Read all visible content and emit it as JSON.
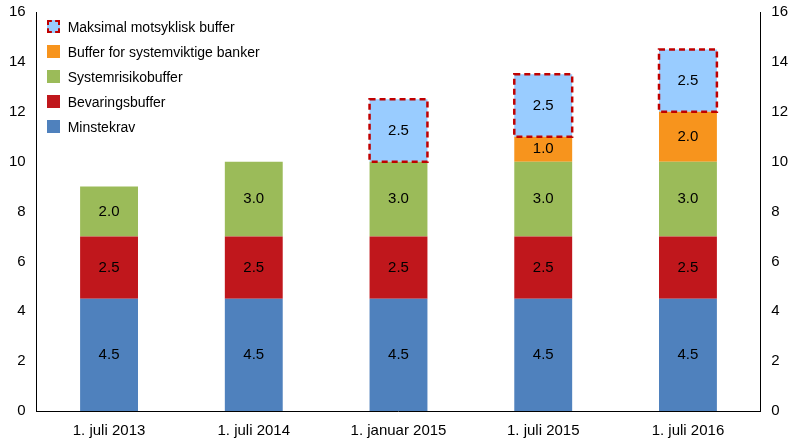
{
  "chart_data": {
    "type": "bar",
    "stacked": true,
    "data_labels": true,
    "grid": false,
    "legend": "upper left",
    "categories": [
      "1. juli 2013",
      "1. juli 2014",
      "1. januar 2015",
      "1. juli 2015",
      "1. juli 2016"
    ],
    "series": [
      {
        "name": "Minstekrav",
        "color": "#4f81bd",
        "values": [
          4.5,
          4.5,
          4.5,
          4.5,
          4.5
        ]
      },
      {
        "name": "Bevaringsbuffer",
        "color": "#c0171c",
        "values": [
          2.5,
          2.5,
          2.5,
          2.5,
          2.5
        ]
      },
      {
        "name": "Systemrisikobuffer",
        "color": "#9bbb59",
        "values": [
          2,
          3,
          3,
          3,
          3
        ],
        "value_labels": [
          "2.0",
          "3.0",
          "3.0",
          "3.0",
          "3.0"
        ]
      },
      {
        "name": "Buffer for systemviktige banker",
        "color": "#f7941d",
        "values": [
          null,
          null,
          null,
          1,
          2
        ],
        "value_labels": [
          null,
          null,
          null,
          "1.0",
          "2.0"
        ]
      },
      {
        "name": "Maksimal motsyklisk buffer",
        "color": "#99ccff",
        "line_style": "dashed",
        "values": [
          null,
          null,
          2.5,
          2.5,
          2.5
        ]
      }
    ],
    "ylim": [
      0,
      16
    ],
    "yticks": [
      0,
      2,
      4,
      6,
      8,
      10,
      12,
      14,
      16
    ],
    "y2lim": [
      0,
      16
    ],
    "y2ticks": [
      0,
      2,
      4,
      6,
      8,
      10,
      12,
      14,
      16
    ]
  }
}
